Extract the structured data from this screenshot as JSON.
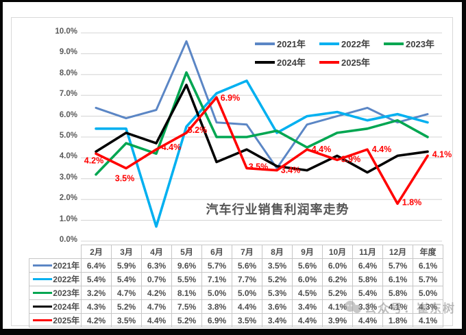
{
  "chart_data": {
    "type": "line",
    "title": "汽车行业销售利润率走势",
    "categories": [
      "2月",
      "3月",
      "4月",
      "5月",
      "6月",
      "7月",
      "8月",
      "9月",
      "10月",
      "11月",
      "12月",
      "年度"
    ],
    "ylim": [
      0,
      10
    ],
    "ytick_step": 1,
    "ytick_labels": [
      "0.0%",
      "1.0%",
      "2.0%",
      "3.0%",
      "4.0%",
      "5.0%",
      "6.0%",
      "7.0%",
      "8.0%",
      "9.0%",
      "10.0%"
    ],
    "grid": true,
    "legend_position": "top-right",
    "gridline_color": "#d6d6d6",
    "series": [
      {
        "name": "2021年",
        "color": "#5B86C5",
        "values": [
          6.4,
          5.9,
          6.3,
          9.6,
          5.7,
          5.6,
          3.5,
          5.6,
          6.0,
          6.4,
          5.7,
          6.1
        ],
        "show_data_labels": false
      },
      {
        "name": "2022年",
        "color": "#00B0F0",
        "values": [
          5.4,
          5.4,
          0.7,
          5.5,
          7.1,
          7.7,
          5.2,
          6.0,
          6.2,
          5.8,
          6.1,
          5.7
        ],
        "show_data_labels": false
      },
      {
        "name": "2023年",
        "color": "#00A651",
        "values": [
          3.2,
          4.7,
          4.2,
          8.1,
          5.0,
          5.0,
          5.3,
          4.5,
          5.2,
          5.4,
          5.8,
          5.0
        ],
        "show_data_labels": false
      },
      {
        "name": "2024年",
        "color": "#000000",
        "values": [
          4.3,
          5.2,
          4.7,
          7.5,
          3.8,
          4.4,
          3.6,
          3.4,
          4.1,
          3.3,
          4.1,
          4.3
        ],
        "show_data_labels": false
      },
      {
        "name": "2025年",
        "color": "#FF0000",
        "values": [
          4.2,
          3.5,
          4.4,
          5.2,
          6.9,
          3.5,
          3.4,
          4.4,
          3.9,
          4.4,
          1.8,
          4.1
        ],
        "show_data_labels": true,
        "label_offsets": [
          [
            -3,
            14
          ],
          [
            -2,
            19
          ],
          [
            22,
            1
          ],
          [
            16,
            0
          ],
          [
            20,
            5
          ],
          [
            17,
            2
          ],
          [
            20,
            4
          ],
          [
            21,
            4
          ],
          [
            20,
            3
          ],
          [
            21,
            4
          ],
          [
            21,
            2
          ],
          [
            21,
            2
          ]
        ]
      }
    ]
  },
  "table": {
    "corner_label": "",
    "col_headers": [
      "2月",
      "3月",
      "4月",
      "5月",
      "6月",
      "7月",
      "8月",
      "9月",
      "10月",
      "11月",
      "12月",
      "年度"
    ],
    "value_suffix": "%"
  },
  "watermark": {
    "icon": "chat-bubbles-icon",
    "text": "公众号：崔东树"
  }
}
